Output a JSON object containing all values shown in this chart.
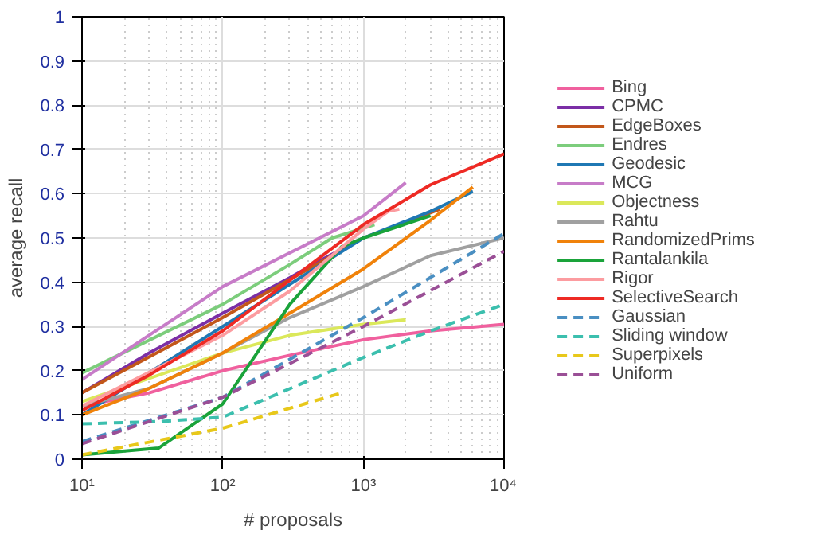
{
  "chart_data": {
    "type": "line",
    "xlabel": "# proposals",
    "ylabel": "average recall",
    "log": "x",
    "grid": true,
    "legend": "right",
    "xlim": [
      10,
      10000
    ],
    "ylim": [
      0,
      1
    ],
    "xticks": [
      {
        "value": 10,
        "label": "10¹"
      },
      {
        "value": 100,
        "label": "10²"
      },
      {
        "value": 1000,
        "label": "10³"
      },
      {
        "value": 10000,
        "label": "10⁴"
      }
    ],
    "yticks": [
      0,
      0.1,
      0.2,
      0.3,
      0.4,
      0.5,
      0.6,
      0.7,
      0.8,
      0.9,
      1
    ],
    "series": [
      {
        "name": "Bing",
        "color": "#f0609e",
        "line_style": "solid",
        "x": [
          10,
          30,
          100,
          300,
          1000,
          3000,
          10000
        ],
        "values": [
          0.12,
          0.15,
          0.2,
          0.235,
          0.27,
          0.29,
          0.305
        ]
      },
      {
        "name": "CPMC",
        "color": "#7b2fa6",
        "line_style": "solid",
        "x": [
          10,
          30,
          100,
          300,
          500,
          1000
        ],
        "values": [
          0.15,
          0.24,
          0.33,
          0.41,
          0.45,
          0.5
        ]
      },
      {
        "name": "EdgeBoxes",
        "color": "#c2571a",
        "line_style": "solid",
        "x": [
          10,
          100,
          1000,
          3500
        ],
        "values": [
          0.15,
          0.32,
          0.5,
          0.565
        ]
      },
      {
        "name": "Endres",
        "color": "#7ccd7c",
        "line_style": "solid",
        "x": [
          10,
          100,
          300,
          600,
          1200
        ],
        "values": [
          0.195,
          0.35,
          0.44,
          0.5,
          0.53
        ]
      },
      {
        "name": "Geodesic",
        "color": "#1f78b4",
        "line_style": "solid",
        "x": [
          10,
          100,
          1000,
          3000,
          6000
        ],
        "values": [
          0.1,
          0.3,
          0.5,
          0.56,
          0.605
        ]
      },
      {
        "name": "MCG",
        "color": "#c77cc8",
        "line_style": "solid",
        "x": [
          10,
          100,
          1000,
          2000
        ],
        "values": [
          0.18,
          0.39,
          0.55,
          0.625
        ]
      },
      {
        "name": "Objectness",
        "color": "#dbe85a",
        "line_style": "solid",
        "x": [
          10,
          100,
          300,
          1000,
          2000
        ],
        "values": [
          0.13,
          0.24,
          0.28,
          0.305,
          0.315
        ]
      },
      {
        "name": "Rahtu",
        "color": "#a0a0a0",
        "line_style": "solid",
        "x": [
          10,
          30,
          100,
          300,
          1000,
          3000,
          10000
        ],
        "values": [
          0.12,
          0.16,
          0.24,
          0.32,
          0.39,
          0.46,
          0.5
        ]
      },
      {
        "name": "RandomizedPrims",
        "color": "#f0820a",
        "line_style": "solid",
        "x": [
          10,
          30,
          100,
          300,
          1000,
          3000,
          6000
        ],
        "values": [
          0.1,
          0.16,
          0.24,
          0.33,
          0.43,
          0.54,
          0.615
        ]
      },
      {
        "name": "Rantalankila",
        "color": "#1aa33a",
        "line_style": "solid",
        "x": [
          10,
          35,
          100,
          300,
          700,
          1000,
          3000
        ],
        "values": [
          0.01,
          0.025,
          0.125,
          0.35,
          0.48,
          0.5,
          0.55
        ]
      },
      {
        "name": "Rigor",
        "color": "#fc9ca0",
        "line_style": "solid",
        "x": [
          10,
          100,
          300,
          1000,
          1500,
          1800
        ],
        "values": [
          0.12,
          0.28,
          0.38,
          0.52,
          0.56,
          0.565
        ]
      },
      {
        "name": "SelectiveSearch",
        "color": "#ee2a24",
        "line_style": "solid",
        "x": [
          10,
          30,
          100,
          1000,
          3000,
          10000
        ],
        "values": [
          0.11,
          0.19,
          0.29,
          0.53,
          0.62,
          0.69
        ]
      },
      {
        "name": "Gaussian",
        "color": "#4a8fc2",
        "line_style": "dashed",
        "x": [
          10,
          100,
          1000,
          10000
        ],
        "values": [
          0.04,
          0.14,
          0.32,
          0.51
        ]
      },
      {
        "name": "Sliding window",
        "color": "#3cbfae",
        "line_style": "dashed",
        "x": [
          10,
          35,
          100,
          1000,
          3000,
          10000
        ],
        "values": [
          0.08,
          0.085,
          0.095,
          0.23,
          0.29,
          0.35
        ]
      },
      {
        "name": "Superpixels",
        "color": "#e8c81a",
        "line_style": "dashed",
        "x": [
          10,
          100,
          700
        ],
        "values": [
          0.01,
          0.07,
          0.15
        ]
      },
      {
        "name": "Uniform",
        "color": "#9a4f96",
        "line_style": "dashed",
        "x": [
          10,
          100,
          1000,
          10000
        ],
        "values": [
          0.035,
          0.14,
          0.3,
          0.47
        ]
      }
    ]
  }
}
